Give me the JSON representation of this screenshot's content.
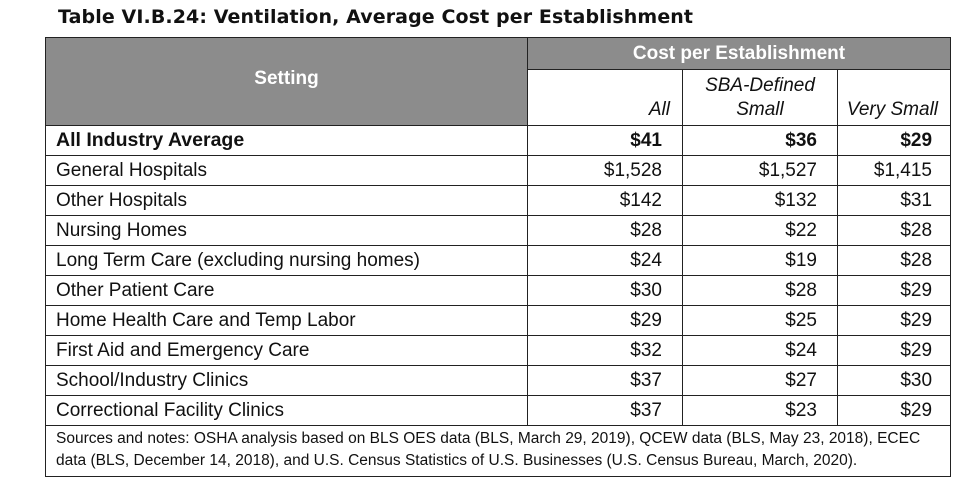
{
  "title": "Table VI.B.24: Ventilation, Average Cost per Establishment",
  "header": {
    "setting": "Setting",
    "group": "Cost per Establishment",
    "col_all": "All",
    "col_sba_line1": "SBA-Defined",
    "col_sba_line2": "Small",
    "col_very_small": "Very Small"
  },
  "rows": [
    {
      "setting": "All Industry Average",
      "all": "$41",
      "sba": "$36",
      "very_small": "$29"
    },
    {
      "setting": "General Hospitals",
      "all": "$1,528",
      "sba": "$1,527",
      "very_small": "$1,415"
    },
    {
      "setting": "Other Hospitals",
      "all": "$142",
      "sba": "$132",
      "very_small": "$31"
    },
    {
      "setting": "Nursing Homes",
      "all": "$28",
      "sba": "$22",
      "very_small": "$28"
    },
    {
      "setting": "Long Term Care (excluding nursing homes)",
      "all": "$24",
      "sba": "$19",
      "very_small": "$28"
    },
    {
      "setting": "Other Patient Care",
      "all": "$30",
      "sba": "$28",
      "very_small": "$29"
    },
    {
      "setting": "Home Health Care and Temp Labor",
      "all": "$29",
      "sba": "$25",
      "very_small": "$29"
    },
    {
      "setting": "First Aid and Emergency Care",
      "all": "$32",
      "sba": "$24",
      "very_small": "$29"
    },
    {
      "setting": "School/Industry Clinics",
      "all": "$37",
      "sba": "$27",
      "very_small": "$30"
    },
    {
      "setting": "Correctional Facility Clinics",
      "all": "$37",
      "sba": "$23",
      "very_small": "$29"
    }
  ],
  "notes": "Sources and notes: OSHA analysis based on BLS OES data (BLS, March 29, 2019), QCEW data (BLS, May 23, 2018), ECEC data (BLS, December 14, 2018), and U.S. Census Statistics of U.S. Businesses (U.S. Census Bureau, March, 2020).",
  "colors": {
    "header_bg": "#8c8c8c",
    "header_text": "#ffffff",
    "border": "#222222"
  }
}
